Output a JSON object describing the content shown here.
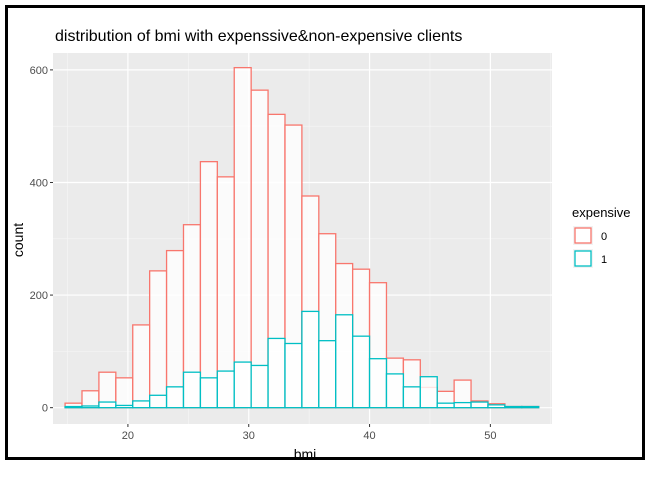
{
  "chart_data": {
    "type": "bar",
    "title": "distribution of bmi with expenssive&non-expensive clients",
    "xlabel": "bmi",
    "ylabel": "count",
    "xlim": [
      13.8,
      55.1
    ],
    "ylim": [
      -29,
      630
    ],
    "xticks": [
      20,
      30,
      40,
      50
    ],
    "yticks": [
      0,
      200,
      400,
      600
    ],
    "grid": true,
    "legend": {
      "title": "expensive",
      "placement": "right"
    },
    "bin_width": 1.4,
    "bin_starts": [
      14.8,
      16.2,
      17.6,
      19.0,
      20.4,
      21.8,
      23.2,
      24.6,
      26.0,
      27.4,
      28.8,
      30.2,
      31.6,
      33.0,
      34.4,
      35.8,
      37.2,
      38.6,
      40.0,
      41.4,
      42.8,
      44.2,
      45.6,
      47.0,
      48.4,
      49.8,
      51.2,
      52.6
    ],
    "series": [
      {
        "name": "0",
        "color": "#f8766d",
        "values": [
          8,
          30,
          63,
          53,
          147,
          243,
          279,
          325,
          437,
          410,
          604,
          564,
          521,
          502,
          376,
          309,
          256,
          246,
          222,
          88,
          85,
          36,
          29,
          49,
          12,
          7,
          2,
          2
        ]
      },
      {
        "name": "1",
        "color": "#00bfc4",
        "values": [
          2,
          3,
          10,
          4,
          12,
          22,
          37,
          63,
          53,
          65,
          81,
          75,
          123,
          114,
          171,
          119,
          165,
          127,
          87,
          60,
          37,
          55,
          8,
          9,
          10,
          5,
          2,
          2
        ]
      }
    ]
  }
}
